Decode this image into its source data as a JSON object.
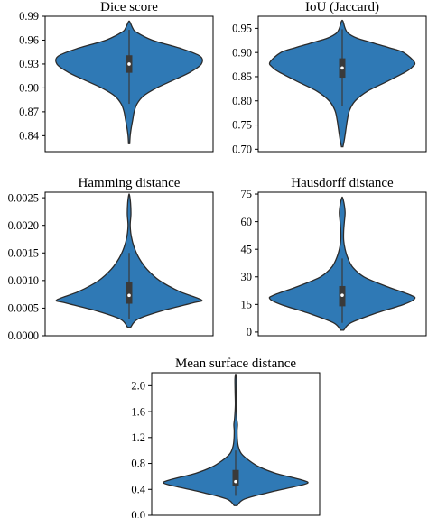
{
  "chart_data": [
    {
      "type": "violin",
      "title": "Dice score",
      "ylim": [
        0.82,
        0.99
      ],
      "yticks": [
        0.84,
        0.87,
        0.9,
        0.93,
        0.96,
        0.99
      ],
      "ytick_labels": [
        "0.84",
        "0.87",
        "0.90",
        "0.93",
        "0.96",
        "0.99"
      ],
      "color": "#2f79b5",
      "min": 0.83,
      "max": 0.983,
      "q1": 0.919,
      "median": 0.93,
      "q3": 0.941,
      "whisker_low": 0.88,
      "whisker_high": 0.973,
      "density": [
        [
          0.83,
          0.008
        ],
        [
          0.84,
          0.015
        ],
        [
          0.85,
          0.03
        ],
        [
          0.86,
          0.05
        ],
        [
          0.87,
          0.07
        ],
        [
          0.88,
          0.11
        ],
        [
          0.89,
          0.2
        ],
        [
          0.9,
          0.38
        ],
        [
          0.91,
          0.62
        ],
        [
          0.92,
          0.85
        ],
        [
          0.93,
          1.0
        ],
        [
          0.94,
          0.98
        ],
        [
          0.95,
          0.7
        ],
        [
          0.96,
          0.32
        ],
        [
          0.97,
          0.1
        ],
        [
          0.975,
          0.05
        ],
        [
          0.983,
          0.01
        ]
      ]
    },
    {
      "type": "violin",
      "title": "IoU (Jaccard)",
      "ylim": [
        0.695,
        0.975
      ],
      "yticks": [
        0.7,
        0.75,
        0.8,
        0.85,
        0.9,
        0.95
      ],
      "ytick_labels": [
        "0.70",
        "0.75",
        "0.80",
        "0.85",
        "0.90",
        "0.95"
      ],
      "color": "#2f79b5",
      "min": 0.705,
      "max": 0.965,
      "q1": 0.848,
      "median": 0.868,
      "q3": 0.888,
      "whisker_low": 0.79,
      "whisker_high": 0.948,
      "density": [
        [
          0.705,
          0.01
        ],
        [
          0.72,
          0.03
        ],
        [
          0.74,
          0.05
        ],
        [
          0.76,
          0.07
        ],
        [
          0.78,
          0.1
        ],
        [
          0.8,
          0.18
        ],
        [
          0.82,
          0.35
        ],
        [
          0.84,
          0.62
        ],
        [
          0.86,
          0.88
        ],
        [
          0.87,
          0.97
        ],
        [
          0.88,
          1.0
        ],
        [
          0.9,
          0.85
        ],
        [
          0.91,
          0.65
        ],
        [
          0.92,
          0.42
        ],
        [
          0.93,
          0.2
        ],
        [
          0.94,
          0.08
        ],
        [
          0.95,
          0.04
        ],
        [
          0.965,
          0.01
        ]
      ]
    },
    {
      "type": "violin",
      "title": "Hamming distance",
      "ylim": [
        0.0,
        0.0026
      ],
      "yticks": [
        0.0,
        0.0005,
        0.001,
        0.0015,
        0.002,
        0.0025
      ],
      "ytick_labels": [
        "0.0000",
        "0.0005",
        "0.0010",
        "0.0015",
        "0.0020",
        "0.0025"
      ],
      "color": "#2f79b5",
      "min": 0.00015,
      "max": 0.00255,
      "q1": 0.00058,
      "median": 0.00073,
      "q3": 0.00098,
      "whisker_low": 0.0003,
      "whisker_high": 0.0015,
      "density": [
        [
          0.00015,
          0.02
        ],
        [
          0.0003,
          0.12
        ],
        [
          0.00045,
          0.45
        ],
        [
          0.0006,
          0.9
        ],
        [
          0.00065,
          1.0
        ],
        [
          0.0008,
          0.7
        ],
        [
          0.001,
          0.42
        ],
        [
          0.0012,
          0.25
        ],
        [
          0.0014,
          0.14
        ],
        [
          0.0016,
          0.07
        ],
        [
          0.0018,
          0.03
        ],
        [
          0.002,
          0.015
        ],
        [
          0.0022,
          0.025
        ],
        [
          0.0024,
          0.02
        ],
        [
          0.00255,
          0.005
        ]
      ]
    },
    {
      "type": "violin",
      "title": "Hausdorff distance",
      "ylim": [
        -2,
        76
      ],
      "yticks": [
        0,
        15,
        30,
        45,
        60,
        75
      ],
      "ytick_labels": [
        "0",
        "15",
        "30",
        "45",
        "60",
        "75"
      ],
      "color": "#2f79b5",
      "min": 1,
      "max": 73,
      "q1": 14,
      "median": 20,
      "q3": 25,
      "whisker_low": 5,
      "whisker_high": 40,
      "density": [
        [
          1,
          0.02
        ],
        [
          5,
          0.12
        ],
        [
          10,
          0.45
        ],
        [
          15,
          0.85
        ],
        [
          18,
          1.0
        ],
        [
          20,
          0.95
        ],
        [
          25,
          0.6
        ],
        [
          30,
          0.3
        ],
        [
          35,
          0.15
        ],
        [
          40,
          0.08
        ],
        [
          45,
          0.04
        ],
        [
          50,
          0.02
        ],
        [
          55,
          0.02
        ],
        [
          60,
          0.03
        ],
        [
          65,
          0.04
        ],
        [
          70,
          0.025
        ],
        [
          73,
          0.005
        ]
      ]
    },
    {
      "type": "violin",
      "title": "Mean surface distance",
      "ylim": [
        0.0,
        2.2
      ],
      "yticks": [
        0.0,
        0.4,
        0.8,
        1.2,
        1.6,
        2.0
      ],
      "ytick_labels": [
        "0.0",
        "0.4",
        "0.8",
        "1.2",
        "1.6",
        "2.0"
      ],
      "color": "#2f79b5",
      "min": 0.15,
      "max": 2.17,
      "q1": 0.45,
      "median": 0.52,
      "q3": 0.7,
      "whisker_low": 0.3,
      "whisker_high": 1.0,
      "density": [
        [
          0.15,
          0.02
        ],
        [
          0.25,
          0.12
        ],
        [
          0.35,
          0.45
        ],
        [
          0.45,
          0.85
        ],
        [
          0.5,
          1.0
        ],
        [
          0.55,
          0.9
        ],
        [
          0.65,
          0.55
        ],
        [
          0.75,
          0.32
        ],
        [
          0.85,
          0.18
        ],
        [
          0.95,
          0.08
        ],
        [
          1.05,
          0.04
        ],
        [
          1.15,
          0.025
        ],
        [
          1.3,
          0.02
        ],
        [
          1.4,
          0.025
        ],
        [
          1.5,
          0.015
        ],
        [
          1.7,
          0.005
        ],
        [
          1.9,
          0.008
        ],
        [
          2.1,
          0.01
        ],
        [
          2.17,
          0.003
        ]
      ]
    }
  ]
}
